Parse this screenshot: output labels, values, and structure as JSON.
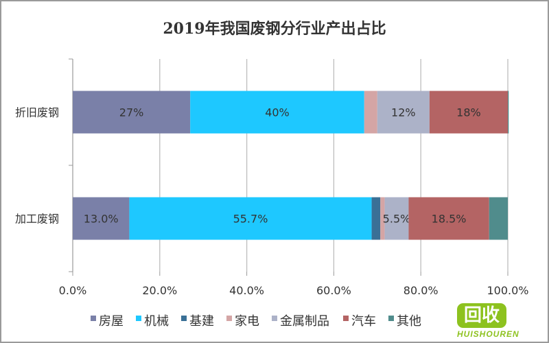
{
  "chart_data": {
    "type": "bar",
    "stacked": true,
    "orientation": "horizontal",
    "title": "2019年我国废钢分行业产出占比",
    "categories": [
      "折旧废钢",
      "加工废钢"
    ],
    "series": [
      {
        "name": "房屋",
        "color": "#7a80a8",
        "values": [
          27,
          13.0
        ],
        "labels": [
          "27%",
          "13.0%"
        ]
      },
      {
        "name": "机械",
        "color": "#1ec8ff",
        "values": [
          40,
          55.7
        ],
        "labels": [
          "40%",
          "55.7%"
        ]
      },
      {
        "name": "基建",
        "color": "#3a7096",
        "values": [
          0,
          2.0
        ],
        "labels": [
          "",
          ""
        ]
      },
      {
        "name": "家电",
        "color": "#d4a5a5",
        "values": [
          3,
          1.0
        ],
        "labels": [
          "",
          ""
        ]
      },
      {
        "name": "金属制品",
        "color": "#acb2c8",
        "values": [
          12,
          5.5
        ],
        "labels": [
          "12%",
          "5.5%"
        ]
      },
      {
        "name": "汽车",
        "color": "#b46464",
        "values": [
          18,
          18.5
        ],
        "labels": [
          "18%",
          "18.5%"
        ]
      },
      {
        "name": "其他",
        "color": "#508c8c",
        "values": [
          0.2,
          4.3
        ],
        "labels": [
          "",
          ""
        ]
      }
    ],
    "xlim": [
      0,
      100
    ],
    "xticks": [
      "0.0%",
      "20.0%",
      "40.0%",
      "60.0%",
      "80.0%",
      "100.0%"
    ],
    "grid": true,
    "legend": "bottom"
  },
  "watermark": {
    "logo": "回收",
    "brand": "HUISHOUREN"
  }
}
